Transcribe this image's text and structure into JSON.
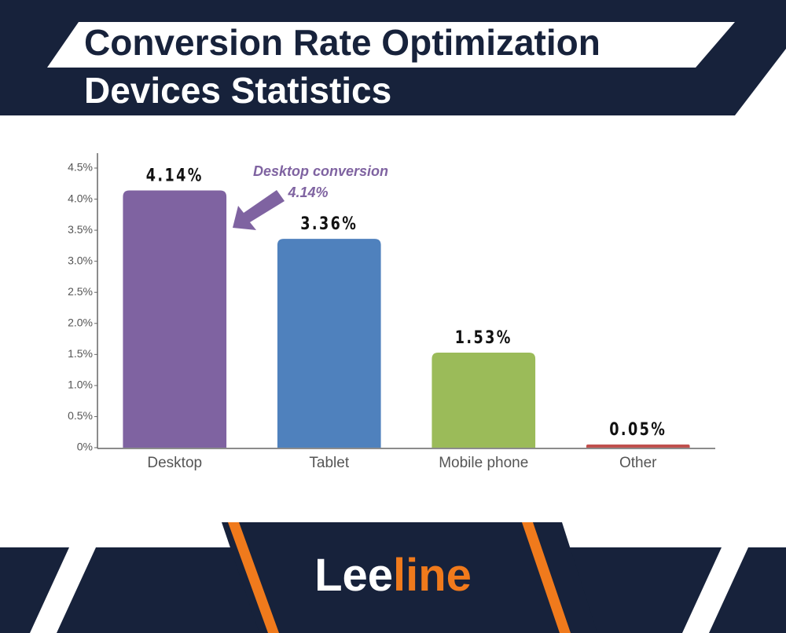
{
  "chart_data": {
    "type": "bar",
    "title": "Conversion Rate Optimization",
    "subtitle": "Devices Statistics",
    "categories": [
      "Desktop",
      "Tablet",
      "Mobile phone",
      "Other"
    ],
    "values": [
      4.14,
      3.36,
      1.53,
      0.05
    ],
    "value_labels": [
      "4.14%",
      "3.36%",
      "1.53%",
      "0.05%"
    ],
    "colors": [
      "#7f63a1",
      "#4f81bd",
      "#9bbb59",
      "#c0504d"
    ],
    "ylim": [
      0,
      4.5
    ],
    "yticks": [
      {
        "value": 0,
        "label": "0%"
      },
      {
        "value": 0.5,
        "label": "0.5%"
      },
      {
        "value": 1,
        "label": "1.0%"
      },
      {
        "value": 1.5,
        "label": "1.5%"
      },
      {
        "value": 2,
        "label": "2.0%"
      },
      {
        "value": 2.5,
        "label": "2.5%"
      },
      {
        "value": 3,
        "label": "3.0%"
      },
      {
        "value": 3.5,
        "label": "3.5%"
      },
      {
        "value": 4,
        "label": "4.0%"
      },
      {
        "value": 4.5,
        "label": "4.5%"
      }
    ],
    "annotation": [
      "Desktop conversion",
      "4.14%"
    ]
  },
  "brand": [
    "Lee",
    "line"
  ]
}
